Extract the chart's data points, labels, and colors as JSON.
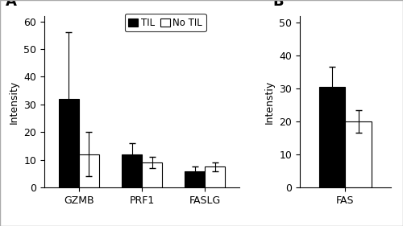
{
  "panel_A": {
    "categories": [
      "GZMB",
      "PRF1",
      "FASLG"
    ],
    "TIL_means": [
      32,
      12,
      6
    ],
    "TIL_errors": [
      24,
      4,
      1.5
    ],
    "NoTIL_means": [
      12,
      9,
      7.5
    ],
    "NoTIL_errors": [
      8,
      2,
      1.5
    ],
    "ylabel": "Intensity",
    "ylim": [
      0,
      62
    ],
    "yticks": [
      0,
      10,
      20,
      30,
      40,
      50,
      60
    ],
    "panel_label": "A"
  },
  "panel_B": {
    "categories": [
      "FAS"
    ],
    "TIL_means": [
      30.5
    ],
    "TIL_errors": [
      6
    ],
    "NoTIL_means": [
      20
    ],
    "NoTIL_errors": [
      3.5
    ],
    "ylabel": "Intenstiy",
    "ylim": [
      0,
      52
    ],
    "yticks": [
      0,
      10,
      20,
      30,
      40,
      50
    ],
    "panel_label": "B"
  },
  "legend": {
    "TIL_label": "TIL",
    "NoTIL_label": "No TIL",
    "TIL_color": "#000000",
    "NoTIL_color": "#ffffff",
    "edge_color": "#000000"
  },
  "bar_width": 0.32,
  "capsize": 3,
  "background_color": "#ffffff",
  "font_size": 9,
  "panel_label_fontsize": 13,
  "outer_border_color": "#aaaaaa"
}
